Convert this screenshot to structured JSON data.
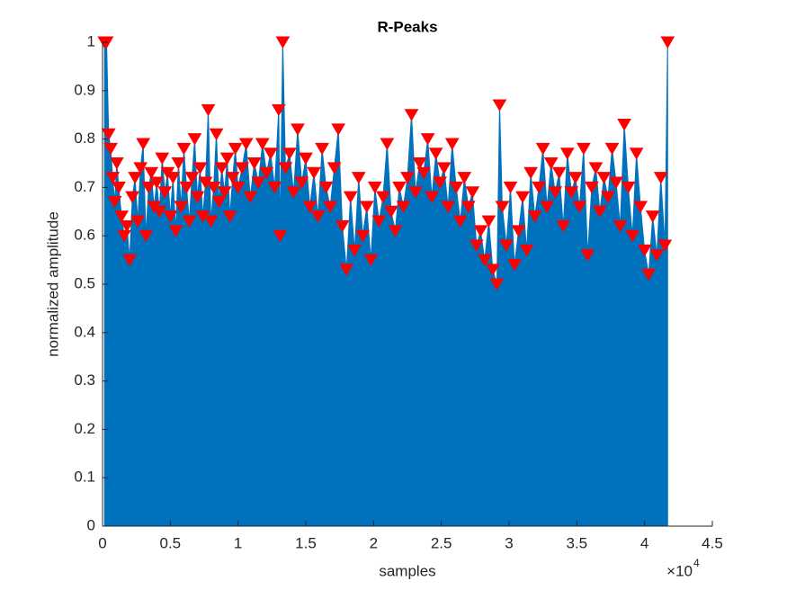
{
  "chart_data": {
    "type": "peaks",
    "title": "R-Peaks",
    "xlabel": "samples",
    "ylabel": "normalized amplitude",
    "xexponent": {
      "base": "×10",
      "power": "4"
    },
    "xlim": [
      0,
      45000
    ],
    "ylim": [
      0,
      1
    ],
    "xticks": [
      0,
      {
        "value": 5000,
        "label": "0.5"
      },
      {
        "value": 10000,
        "label": "1"
      },
      {
        "value": 15000,
        "label": "1.5"
      },
      {
        "value": 20000,
        "label": "2"
      },
      {
        "value": 25000,
        "label": "2.5"
      },
      {
        "value": 30000,
        "label": "3"
      },
      {
        "value": 35000,
        "label": "3.5"
      },
      {
        "value": 40000,
        "label": "4"
      },
      {
        "value": 45000,
        "label": "4.5"
      }
    ],
    "yticks": [
      0,
      0.1,
      0.2,
      0.3,
      0.4,
      0.5,
      0.6,
      0.7,
      0.8,
      0.9,
      1
    ],
    "series": [
      {
        "color": "#0072bd",
        "marker_color": "#ff0000",
        "x": [
          150,
          300,
          450,
          600,
          750,
          900,
          1050,
          1200,
          1400,
          1600,
          1800,
          2000,
          2200,
          2400,
          2600,
          2800,
          3000,
          3200,
          3400,
          3600,
          3800,
          4000,
          4200,
          4400,
          4600,
          4800,
          5000,
          5200,
          5400,
          5600,
          5800,
          6000,
          6200,
          6400,
          6600,
          6800,
          7000,
          7200,
          7400,
          7600,
          7800,
          8000,
          8200,
          8400,
          8600,
          8800,
          9000,
          9200,
          9400,
          9600,
          9800,
          10000,
          10300,
          10600,
          10900,
          11200,
          11500,
          11800,
          12100,
          12400,
          12700,
          13000,
          13100,
          13300,
          13500,
          13800,
          14100,
          14400,
          14700,
          15000,
          15300,
          15600,
          15900,
          16200,
          16500,
          16800,
          17100,
          17400,
          17700,
          18000,
          18300,
          18600,
          18900,
          19200,
          19500,
          19800,
          20100,
          20400,
          20700,
          21000,
          21300,
          21600,
          21900,
          22200,
          22500,
          22800,
          23100,
          23400,
          23700,
          24000,
          24300,
          24600,
          24900,
          25200,
          25500,
          25800,
          26100,
          26400,
          26700,
          27000,
          27300,
          27600,
          27900,
          28200,
          28500,
          28800,
          29100,
          29300,
          29500,
          29800,
          30100,
          30400,
          30700,
          31000,
          31300,
          31600,
          31900,
          32200,
          32500,
          32800,
          33100,
          33400,
          33700,
          34000,
          34300,
          34600,
          34900,
          35200,
          35500,
          35800,
          36100,
          36400,
          36700,
          37000,
          37300,
          37600,
          37900,
          38200,
          38500,
          38800,
          39100,
          39400,
          39700,
          40000,
          40300,
          40600,
          40900,
          41200,
          41500,
          41700
        ],
        "values": [
          1.0,
          1.0,
          0.81,
          0.78,
          0.72,
          0.67,
          0.75,
          0.7,
          0.64,
          0.6,
          0.62,
          0.55,
          0.68,
          0.72,
          0.63,
          0.74,
          0.79,
          0.6,
          0.7,
          0.73,
          0.66,
          0.71,
          0.65,
          0.76,
          0.69,
          0.73,
          0.64,
          0.72,
          0.61,
          0.75,
          0.66,
          0.78,
          0.7,
          0.63,
          0.72,
          0.8,
          0.68,
          0.74,
          0.64,
          0.71,
          0.86,
          0.63,
          0.7,
          0.81,
          0.67,
          0.74,
          0.69,
          0.76,
          0.64,
          0.72,
          0.78,
          0.7,
          0.74,
          0.79,
          0.68,
          0.75,
          0.71,
          0.79,
          0.73,
          0.77,
          0.7,
          0.86,
          0.6,
          1.0,
          0.74,
          0.77,
          0.69,
          0.82,
          0.71,
          0.76,
          0.66,
          0.73,
          0.64,
          0.78,
          0.7,
          0.66,
          0.74,
          0.82,
          0.62,
          0.53,
          0.68,
          0.57,
          0.72,
          0.6,
          0.66,
          0.55,
          0.7,
          0.63,
          0.68,
          0.79,
          0.65,
          0.61,
          0.7,
          0.66,
          0.72,
          0.85,
          0.69,
          0.75,
          0.73,
          0.8,
          0.68,
          0.77,
          0.71,
          0.74,
          0.66,
          0.79,
          0.7,
          0.63,
          0.72,
          0.66,
          0.69,
          0.58,
          0.61,
          0.55,
          0.63,
          0.53,
          0.5,
          0.87,
          0.66,
          0.58,
          0.7,
          0.54,
          0.61,
          0.68,
          0.57,
          0.73,
          0.64,
          0.7,
          0.78,
          0.66,
          0.75,
          0.69,
          0.73,
          0.62,
          0.77,
          0.69,
          0.72,
          0.66,
          0.78,
          0.56,
          0.7,
          0.74,
          0.65,
          0.72,
          0.68,
          0.78,
          0.71,
          0.62,
          0.83,
          0.7,
          0.6,
          0.77,
          0.66,
          0.57,
          0.52,
          0.64,
          0.56,
          0.72,
          0.58,
          1.0
        ]
      }
    ]
  }
}
